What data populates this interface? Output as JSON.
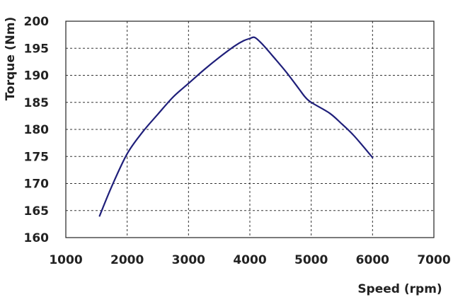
{
  "chart_data": {
    "type": "line",
    "xlabel": "Speed (rpm)",
    "ylabel": "Torque (Nm)",
    "xlim": [
      1000,
      7000
    ],
    "ylim": [
      160,
      200
    ],
    "x_ticks": [
      1000,
      2000,
      3000,
      4000,
      5000,
      6000,
      7000
    ],
    "y_ticks": [
      160,
      165,
      170,
      175,
      180,
      185,
      190,
      195,
      200
    ],
    "grid": true,
    "legend": "none",
    "series": [
      {
        "color": "#1f1f7a",
        "x": [
          1550,
          1750,
          2000,
          2250,
          2500,
          2750,
          3000,
          3250,
          3500,
          3750,
          3900,
          4000,
          4080,
          4200,
          4400,
          4600,
          4800,
          4900,
          5000,
          5300,
          5500,
          5700,
          6000
        ],
        "y": [
          164,
          169.5,
          175.5,
          179.5,
          182.8,
          186,
          188.5,
          191,
          193.3,
          195.4,
          196.4,
          196.8,
          197,
          195.8,
          193.2,
          190.5,
          187.5,
          186,
          185,
          183,
          181,
          178.8,
          174.8
        ]
      }
    ]
  }
}
